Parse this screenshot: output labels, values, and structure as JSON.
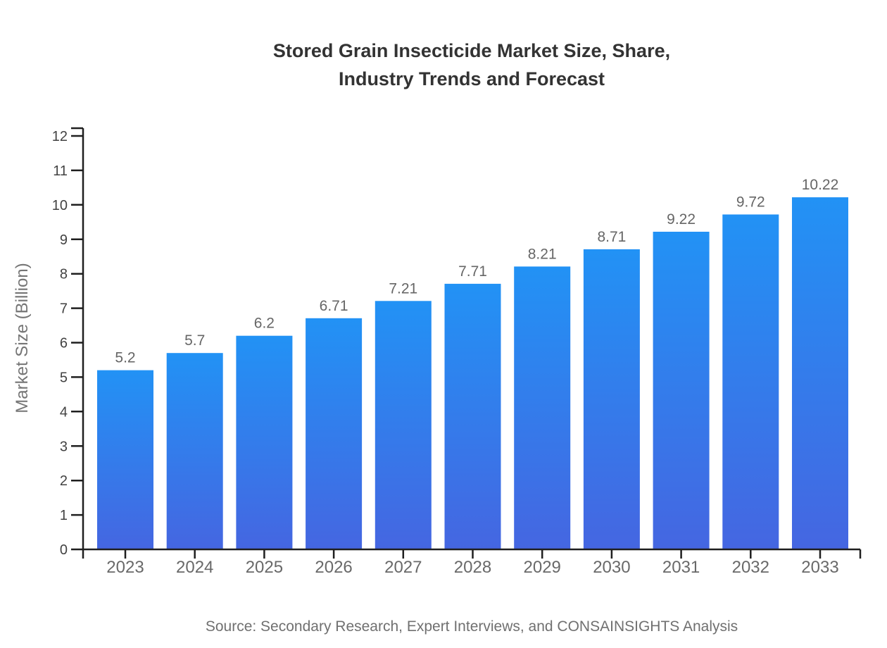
{
  "page": {
    "title_lines": [
      "Stored Grain Insecticide Market Size, Share,",
      "Industry Trends and Forecast"
    ],
    "source_note": "Source: Secondary Research, Expert Interviews, and CONSAINSIGHTS Analysis"
  },
  "chart_data": {
    "type": "bar",
    "title": "Stored Grain Insecticide Market Size, Share, Industry Trends and Forecast",
    "categories": [
      "2023",
      "2024",
      "2025",
      "2026",
      "2027",
      "2028",
      "2029",
      "2030",
      "2031",
      "2032",
      "2033"
    ],
    "values": [
      5.2,
      5.7,
      6.2,
      6.71,
      7.21,
      7.71,
      8.21,
      8.71,
      9.22,
      9.72,
      10.22
    ],
    "value_labels": [
      "5.2",
      "5.7",
      "6.2",
      "6.71",
      "7.21",
      "7.71",
      "8.21",
      "8.71",
      "9.22",
      "9.72",
      "10.22"
    ],
    "xlabel": "",
    "ylabel": "Market Size (Billion)",
    "ylim": [
      0,
      12
    ],
    "ytick_labels": [
      "0",
      "1",
      "2",
      "3",
      "4",
      "5",
      "6",
      "7",
      "8",
      "9",
      "10",
      "11",
      "12"
    ],
    "grid": false,
    "legend": false,
    "colors": {
      "bar_gradient_top": "#2292F5",
      "bar_gradient_bottom": "#4566E1",
      "axis": "#1f1f1f",
      "tick_labels": "#424242",
      "category_labels": "#696969",
      "value_labels": "#666666",
      "title": "#333333",
      "source": "#707070",
      "axis_title": "#757575"
    }
  }
}
